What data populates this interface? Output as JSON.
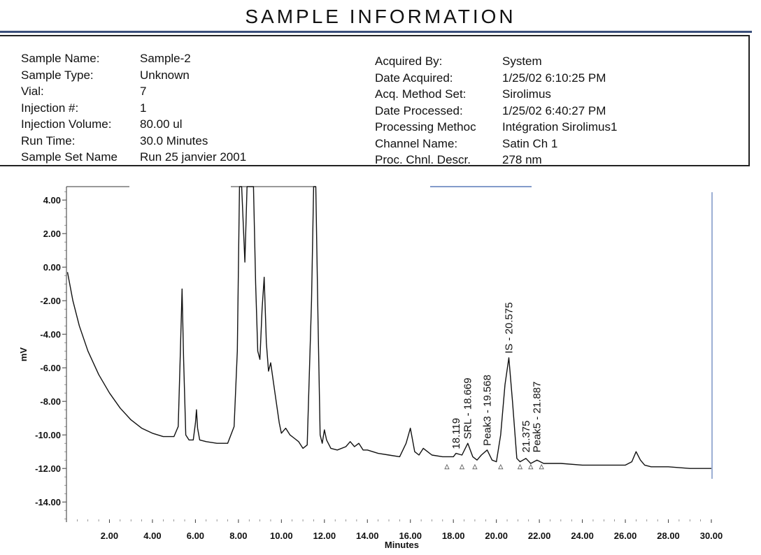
{
  "header": {
    "title": "SAMPLE INFORMATION"
  },
  "sample_info": {
    "left": [
      {
        "label": "Sample Name:",
        "value": "Sample-2"
      },
      {
        "label": "Sample Type:",
        "value": "Unknown"
      },
      {
        "label": "Vial:",
        "value": "7"
      },
      {
        "label": "Injection #:",
        "value": "1"
      },
      {
        "label": "Injection Volume:",
        "value": "80.00 ul"
      },
      {
        "label": "Run Time:",
        "value": "30.0 Minutes"
      },
      {
        "label": "Sample Set Name",
        "value": "Run 25 janvier 2001"
      }
    ],
    "right": [
      {
        "label": "Acquired By:",
        "value": "System"
      },
      {
        "label": "Date Acquired:",
        "value": "1/25/02 6:10:25 PM"
      },
      {
        "label": "Acq. Method Set:",
        "value": "Sirolimus"
      },
      {
        "label": "Date Processed:",
        "value": "1/25/02 6:40:27 PM"
      },
      {
        "label": "Processing Methoc",
        "value": "Intégration Sirolimus1"
      },
      {
        "label": "Channel Name:",
        "value": "Satin Ch 1"
      },
      {
        "label": "Proc. Chnl. Descr.",
        "value": "278 nm"
      }
    ]
  },
  "chart_data": {
    "type": "line",
    "xlabel": "Minutes",
    "ylabel": "mV",
    "xlim": [
      0,
      30
    ],
    "ylim": [
      -15,
      5
    ],
    "x_ticks": [
      "2.00",
      "4.00",
      "6.00",
      "8.00",
      "10.00",
      "12.00",
      "14.00",
      "16.00",
      "18.00",
      "20.00",
      "22.00",
      "24.00",
      "26.00",
      "28.00",
      "30.00"
    ],
    "y_ticks": [
      "4.00",
      "2.00",
      "0.00",
      "-2.00",
      "-4.00",
      "-6.00",
      "-8.00",
      "-10.00",
      "-12.00",
      "-14.00"
    ],
    "grid": false,
    "series": [
      {
        "color": "#111111",
        "x": [
          0.05,
          0.3,
          0.6,
          1.0,
          1.5,
          2.0,
          2.5,
          3.0,
          3.5,
          4.0,
          4.5,
          5.0,
          5.2,
          5.3,
          5.38,
          5.45,
          5.55,
          5.7,
          5.9,
          6.0,
          6.05,
          6.1,
          6.2,
          6.5,
          7.0,
          7.5,
          7.8,
          7.95,
          8.05,
          8.15,
          8.3,
          8.4,
          8.55,
          8.7,
          8.8,
          8.9,
          9.0,
          9.1,
          9.2,
          9.3,
          9.4,
          9.5,
          9.7,
          9.9,
          10.0,
          10.2,
          10.4,
          10.6,
          10.8,
          11.0,
          11.2,
          11.4,
          11.5,
          11.6,
          11.7,
          11.8,
          11.9,
          12.0,
          12.1,
          12.3,
          12.6,
          13.0,
          13.2,
          13.4,
          13.6,
          13.8,
          14.0,
          14.5,
          15.0,
          15.5,
          15.8,
          16.0,
          16.1,
          16.2,
          16.4,
          16.6,
          16.8,
          17.0,
          17.5,
          18.0,
          18.12,
          18.4,
          18.67,
          18.9,
          19.1,
          19.3,
          19.57,
          19.8,
          20.0,
          20.2,
          20.4,
          20.58,
          20.75,
          20.95,
          21.1,
          21.375,
          21.6,
          21.887,
          22.2,
          23.0,
          24.0,
          25.0,
          26.0,
          26.3,
          26.5,
          26.7,
          26.9,
          27.2,
          28.0,
          29.0,
          30.0
        ],
        "y": [
          -0.3,
          -2.0,
          -3.5,
          -5.0,
          -6.4,
          -7.5,
          -8.4,
          -9.1,
          -9.6,
          -9.9,
          -10.1,
          -10.1,
          -9.5,
          -5.0,
          -1.3,
          -5.5,
          -10.0,
          -10.3,
          -10.3,
          -9.3,
          -8.5,
          -9.6,
          -10.3,
          -10.4,
          -10.5,
          -10.5,
          -9.5,
          -5.0,
          4.8,
          4.8,
          0.3,
          4.8,
          4.8,
          4.8,
          -1.0,
          -5.0,
          -5.5,
          -2.5,
          -0.6,
          -4.5,
          -6.2,
          -5.7,
          -7.5,
          -9.3,
          -9.9,
          -9.6,
          -10.0,
          -10.2,
          -10.4,
          -10.8,
          -10.6,
          -2.0,
          4.8,
          4.8,
          -3.0,
          -10.0,
          -10.5,
          -9.7,
          -10.3,
          -10.8,
          -10.9,
          -10.7,
          -10.4,
          -10.7,
          -10.5,
          -10.9,
          -10.9,
          -11.1,
          -11.2,
          -11.3,
          -10.5,
          -9.6,
          -10.3,
          -11.0,
          -11.2,
          -10.8,
          -11.0,
          -11.2,
          -11.3,
          -11.3,
          -11.1,
          -11.2,
          -10.5,
          -11.3,
          -11.5,
          -11.2,
          -10.9,
          -11.5,
          -11.6,
          -10.0,
          -7.0,
          -5.4,
          -8.0,
          -11.4,
          -11.6,
          -11.4,
          -11.7,
          -11.5,
          -11.7,
          -11.7,
          -11.8,
          -11.8,
          -11.8,
          -11.6,
          -11.0,
          -11.5,
          -11.8,
          -11.9,
          -11.9,
          -12.0,
          -12.0
        ]
      }
    ],
    "annotations": [
      {
        "text": "18.119",
        "x": 18.119
      },
      {
        "text": "SRL - 18.669",
        "x": 18.669
      },
      {
        "text": "Peak3 - 19.568",
        "x": 19.568
      },
      {
        "text": "IS - 20.575",
        "x": 20.575
      },
      {
        "text": "21.375",
        "x": 21.375
      },
      {
        "text": "Peak5 - 21.887",
        "x": 21.887
      }
    ]
  }
}
